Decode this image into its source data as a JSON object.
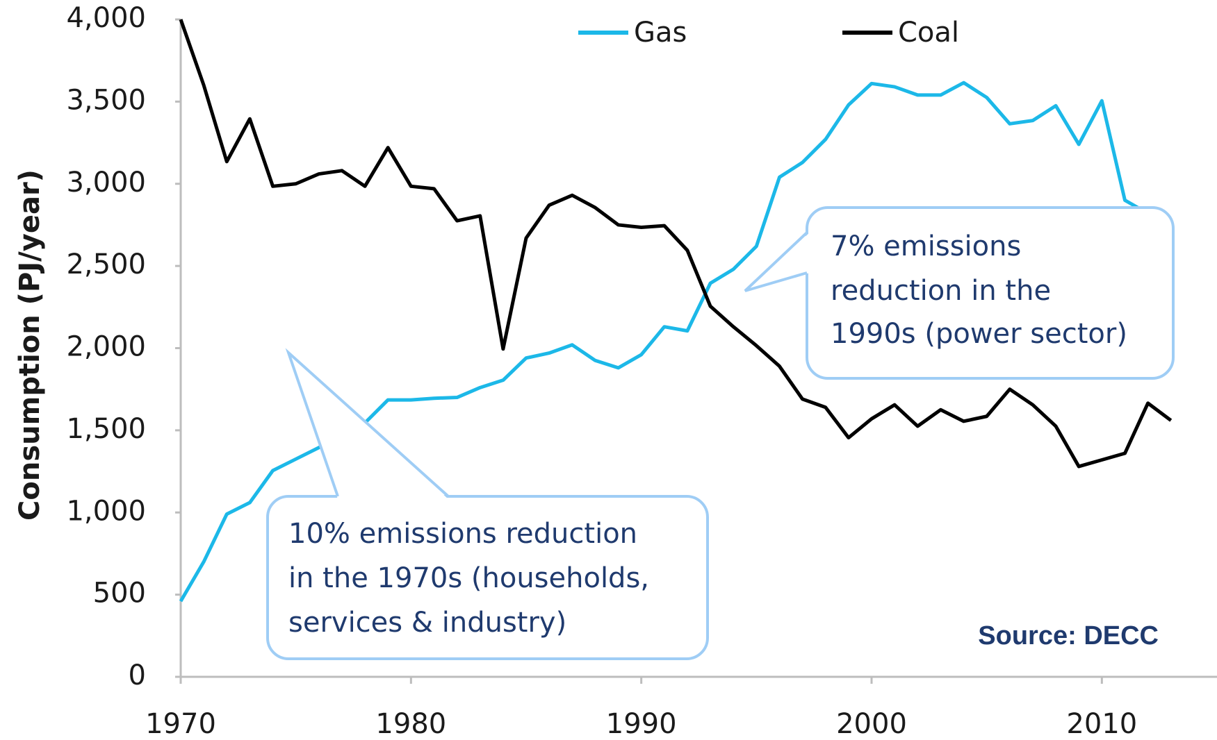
{
  "chart_data": {
    "type": "line",
    "y_label": "Consumption (PJ/year)",
    "x": [
      1970,
      1971,
      1972,
      1973,
      1974,
      1975,
      1976,
      1977,
      1978,
      1979,
      1980,
      1981,
      1982,
      1983,
      1984,
      1985,
      1986,
      1987,
      1988,
      1989,
      1990,
      1991,
      1992,
      1993,
      1994,
      1995,
      1996,
      1997,
      1998,
      1999,
      2000,
      2001,
      2002,
      2003,
      2004,
      2005,
      2006,
      2007,
      2008,
      2009,
      2010,
      2011,
      2012,
      2013
    ],
    "series": [
      {
        "name": "Gas",
        "color": "#1cb8e8",
        "values": [
          460,
          700,
          990,
          1060,
          1255,
          1325,
          1395,
          1475,
          1545,
          1685,
          1685,
          1695,
          1700,
          1760,
          1805,
          1940,
          1970,
          2020,
          1925,
          1880,
          1960,
          2130,
          2105,
          2395,
          2480,
          2620,
          3040,
          3130,
          3270,
          3480,
          3610,
          3590,
          3540,
          3540,
          3615,
          3525,
          3365,
          3385,
          3475,
          3240,
          3505,
          2900,
          2820,
          2735
        ]
      },
      {
        "name": "Coal",
        "color": "#000000",
        "values": [
          4000,
          3600,
          3135,
          3395,
          2985,
          3000,
          3060,
          3080,
          2985,
          3220,
          2985,
          2970,
          2775,
          2805,
          1995,
          2670,
          2870,
          2930,
          2855,
          2750,
          2735,
          2745,
          2595,
          2255,
          2130,
          2015,
          1890,
          1690,
          1640,
          1455,
          1570,
          1655,
          1525,
          1625,
          1555,
          1585,
          1750,
          1655,
          1525,
          1280,
          1320,
          1360,
          1665,
          1560
        ]
      }
    ],
    "xlim": [
      1970,
      2015
    ],
    "xticks": [
      1970,
      1980,
      1990,
      2000,
      2010
    ],
    "ylim": [
      0,
      4000
    ],
    "yticks": [
      0,
      500,
      {
        "value": 1000,
        "label": "1,000"
      },
      {
        "value": 1500,
        "label": "1,500"
      },
      {
        "value": 2000,
        "label": "2,000"
      },
      {
        "value": 2500,
        "label": "2,500"
      },
      {
        "value": 3000,
        "label": "3,000"
      },
      {
        "value": 3500,
        "label": "3,500"
      },
      {
        "value": 4000,
        "label": "4,000"
      }
    ],
    "grid": false,
    "legend": "top",
    "annotations": [
      {
        "lines": [
          "10% emissions reduction",
          "in the 1970s (households,",
          "services & industry)"
        ]
      },
      {
        "lines": [
          "7% emissions",
          "reduction in the",
          "1990s (power sector)"
        ]
      }
    ],
    "source": "Source: DECC"
  }
}
